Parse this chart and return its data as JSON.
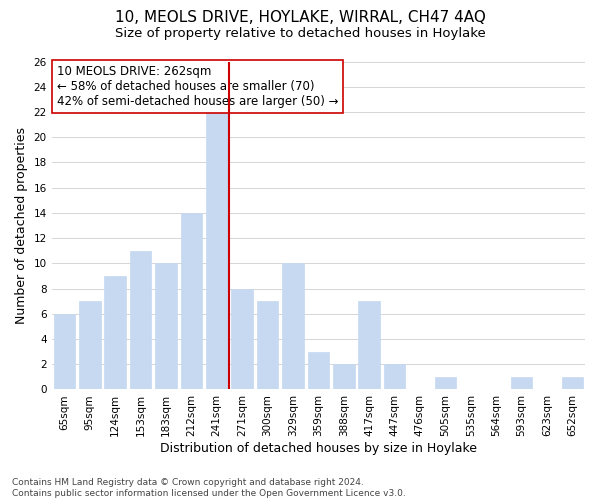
{
  "title": "10, MEOLS DRIVE, HOYLAKE, WIRRAL, CH47 4AQ",
  "subtitle": "Size of property relative to detached houses in Hoylake",
  "xlabel": "Distribution of detached houses by size in Hoylake",
  "ylabel": "Number of detached properties",
  "footer_line1": "Contains HM Land Registry data © Crown copyright and database right 2024.",
  "footer_line2": "Contains public sector information licensed under the Open Government Licence v3.0.",
  "bar_labels": [
    "65sqm",
    "95sqm",
    "124sqm",
    "153sqm",
    "183sqm",
    "212sqm",
    "241sqm",
    "271sqm",
    "300sqm",
    "329sqm",
    "359sqm",
    "388sqm",
    "417sqm",
    "447sqm",
    "476sqm",
    "505sqm",
    "535sqm",
    "564sqm",
    "593sqm",
    "623sqm",
    "652sqm"
  ],
  "bar_values": [
    6,
    7,
    9,
    11,
    10,
    14,
    22,
    8,
    7,
    10,
    3,
    2,
    7,
    2,
    0,
    1,
    0,
    0,
    1,
    0,
    1
  ],
  "bar_color": "#c6d9f0",
  "bar_edge_color": "#c6d9f0",
  "vline_x": 6.5,
  "vline_color": "#cc0000",
  "ylim": [
    0,
    26
  ],
  "yticks": [
    0,
    2,
    4,
    6,
    8,
    10,
    12,
    14,
    16,
    18,
    20,
    22,
    24,
    26
  ],
  "annotation_title": "10 MEOLS DRIVE: 262sqm",
  "annotation_line2": "← 58% of detached houses are smaller (70)",
  "annotation_line3": "42% of semi-detached houses are larger (50) →",
  "annotation_box_edge": "#cc0000",
  "background_color": "#ffffff",
  "grid_color": "#d0d0d0",
  "title_fontsize": 11,
  "subtitle_fontsize": 9.5,
  "axis_label_fontsize": 9,
  "tick_fontsize": 7.5,
  "annotation_fontsize": 8.5,
  "footer_fontsize": 6.5
}
